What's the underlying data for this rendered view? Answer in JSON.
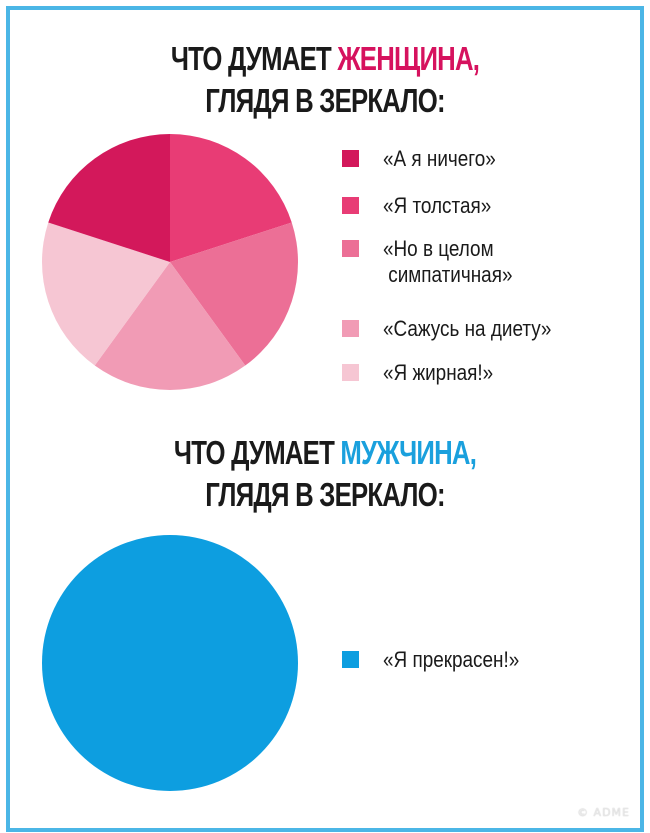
{
  "charts": {
    "woman": {
      "title_prefix": "ЧТО ДУМАЕТ ",
      "title_accent": "ЖЕНЩИНА,",
      "title_line2": "ГЛЯДЯ В ЗЕРКАЛО:",
      "accent_color": "#d6125e"
    },
    "man": {
      "title_prefix": "ЧТО ДУМАЕТ ",
      "title_accent": "МУЖЧИНА,",
      "title_line2": "ГЛЯДЯ В ЗЕРКАЛО:",
      "accent_color": "#1aa0dd"
    }
  },
  "chart_data": [
    {
      "type": "pie",
      "title": "ЧТО ДУМАЕТ ЖЕНЩИНА, ГЛЯДЯ В ЗЕРКАЛО:",
      "categories": [
        "«А я ничего»",
        "«Я толстая»",
        "«Но в целом\n симпатичная»",
        "«Сажусь на диету»",
        "«Я жирная!»"
      ],
      "values": [
        20,
        20,
        20,
        20,
        20
      ],
      "colors": [
        "#d3185b",
        "#e83c75",
        "#ec6f96",
        "#f19bb5",
        "#f6c6d3"
      ],
      "legend": "right"
    },
    {
      "type": "pie",
      "title": "ЧТО ДУМАЕТ МУЖЧИНА, ГЛЯДЯ В ЗЕРКАЛО:",
      "categories": [
        "«Я прекрасен!»"
      ],
      "values": [
        100
      ],
      "colors": [
        "#0d9ee0"
      ],
      "legend": "right"
    }
  ],
  "watermark": "© ADME"
}
